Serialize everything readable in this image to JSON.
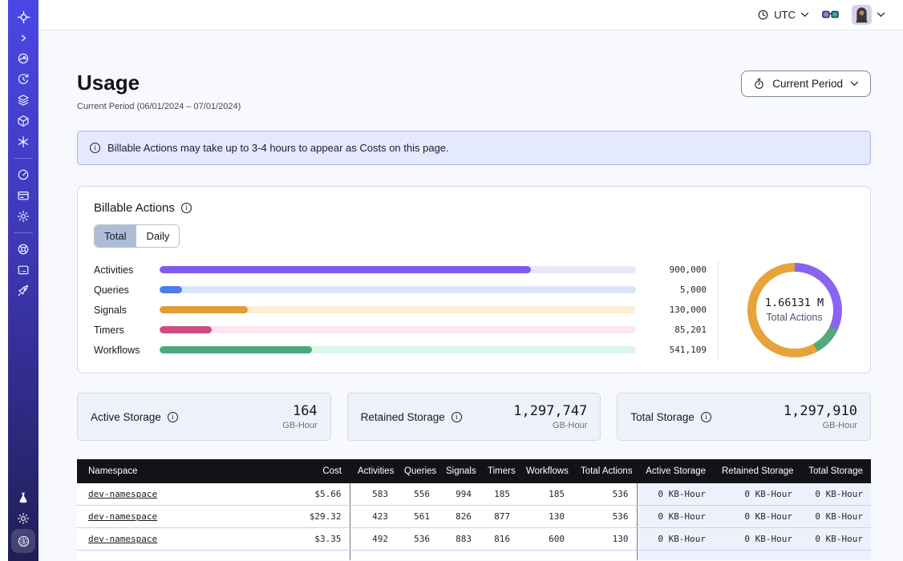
{
  "topbar": {
    "timezone": "UTC"
  },
  "icons_text": {
    "info": "i",
    "dollar": "$"
  },
  "sidebar": {
    "items": [
      "temporal-logo",
      "expand",
      "namespaces",
      "schedules",
      "layers",
      "deployments",
      "nexus",
      "usage",
      "billing",
      "settings",
      "support",
      "feedback",
      "getting-started",
      "labs",
      "theme",
      "pricing"
    ],
    "active_item": "pricing"
  },
  "page": {
    "title": "Usage",
    "subtitle": "Current Period (06/01/2024 – 07/01/2024)",
    "period_button": "Current Period"
  },
  "banner": {
    "text": "Billable Actions may take up to 3-4 hours to appear as Costs on this page."
  },
  "billable": {
    "title": "Billable Actions",
    "tabs": [
      {
        "label": "Total",
        "active": true
      },
      {
        "label": "Daily",
        "active": false
      }
    ],
    "chart_data": [
      {
        "type": "bar",
        "categories": [
          "Activities",
          "Queries",
          "Signals",
          "Timers",
          "Workflows"
        ],
        "values": [
          900000,
          5000,
          130000,
          85201,
          541109
        ],
        "value_labels": [
          "900,000",
          "5,000",
          "130,000",
          "85,201",
          "541,109"
        ],
        "fill_percent": [
          78,
          4.7,
          18.6,
          11,
          32
        ],
        "bar_colors": [
          "#7c5cf0",
          "#4b7ce8",
          "#e29b36",
          "#ce4b84",
          "#4aa87d"
        ],
        "track_colors": [
          "#eae6fb",
          "#dbe5f8",
          "#faefd0",
          "#fbe7f3",
          "#dcf6e8"
        ]
      },
      {
        "type": "donut",
        "center_value": "1.66131 M",
        "center_label": "Total Actions",
        "segments": [
          {
            "name": "activities",
            "color": "#8a63f0",
            "percent": 32
          },
          {
            "name": "workflows",
            "color": "#53a87c",
            "percent": 10
          },
          {
            "name": "signals",
            "color": "#e8a33b",
            "percent": 58
          }
        ]
      }
    ]
  },
  "storage_cards": [
    {
      "label": "Active Storage",
      "value": "164",
      "unit": "GB-Hour"
    },
    {
      "label": "Retained Storage",
      "value": "1,297,747",
      "unit": "GB-Hour"
    },
    {
      "label": "Total Storage",
      "value": "1,297,910",
      "unit": "GB-Hour"
    }
  ],
  "table": {
    "headers": [
      "Namespace",
      "Cost",
      "Activities",
      "Queries",
      "Signals",
      "Timers",
      "Workflows",
      "Total Actions",
      "Active Storage",
      "Retained Storage",
      "Total Storage"
    ],
    "rows": [
      {
        "cells": [
          "dev-namespace",
          "$5.66",
          "583",
          "556",
          "994",
          "185",
          "185",
          "536",
          "0 KB-Hour",
          "0 KB-Hour",
          "0 KB-Hour"
        ]
      },
      {
        "cells": [
          "dev-namespace",
          "$29.32",
          "423",
          "561",
          "826",
          "877",
          "130",
          "536",
          "0 KB-Hour",
          "0 KB-Hour",
          "0 KB-Hour"
        ]
      },
      {
        "cells": [
          "dev-namespace",
          "$3.35",
          "492",
          "536",
          "883",
          "816",
          "600",
          "130",
          "0 KB-Hour",
          "0 KB-Hour",
          "0 KB-Hour"
        ]
      }
    ]
  }
}
